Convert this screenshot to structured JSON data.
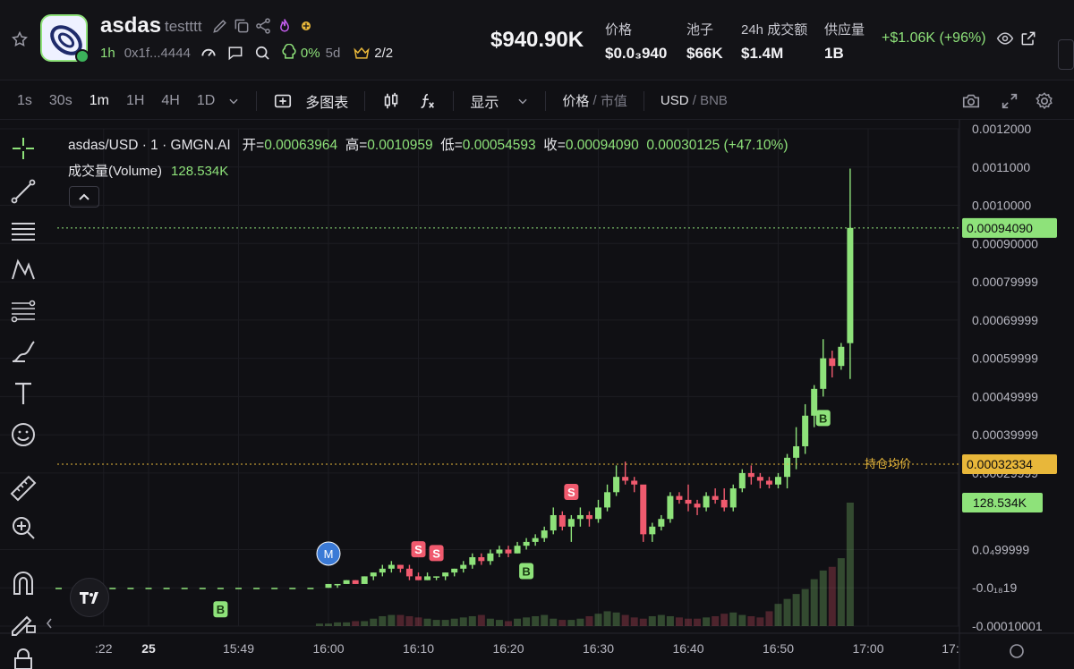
{
  "header": {
    "token_name": "asdas",
    "token_sub": "testttt",
    "age": "1h",
    "address": "0x1f...4444",
    "holder_pct": "0%",
    "holder_period": "5d",
    "crown": "2/2",
    "market_cap": "$940.90K",
    "stats": [
      {
        "label": "价格",
        "value": "$0.0₃940"
      },
      {
        "label": "池子",
        "value": "$66K"
      },
      {
        "label": "24h 成交额",
        "value": "$1.4M"
      },
      {
        "label": "供应量",
        "value": "1B"
      }
    ],
    "change": "+$1.06K (+96%)"
  },
  "toolbar": {
    "timeframes": [
      "1s",
      "30s",
      "1m",
      "1H",
      "4H",
      "1D"
    ],
    "active_timeframe": "1m",
    "multi_chart": "多图表",
    "display": "显示",
    "price_label": "价格",
    "mcap_label": "市值",
    "usd_label": "USD",
    "bnb_label": "BNB"
  },
  "legend": {
    "symbol": "asdas/USD · 1 · GMGN.AI",
    "open_label": "开=",
    "open": "0.00063964",
    "high_label": "高=",
    "high": "0.0010959",
    "low_label": "低=",
    "low": "0.00054593",
    "close_label": "收=",
    "close": "0.00094090",
    "change": "0.00030125 (+47.10%)",
    "volume_label": "成交量(Volume)",
    "volume": "128.534K"
  },
  "colors": {
    "up": "#8ee27a",
    "down": "#f05a6e",
    "bg": "#101014",
    "avg": "#e8b73a",
    "marker_m": "#3b7ad6"
  },
  "chart_data": {
    "type": "candlestick",
    "ylim": [
      -0.0001,
      0.0012
    ],
    "y_ticks": [
      {
        "v": 0.0012,
        "label": "0.0012000"
      },
      {
        "v": 0.0011,
        "label": "0.0011000"
      },
      {
        "v": 0.001,
        "label": "0.0010000"
      },
      {
        "v": 0.0009,
        "label": "0.00090000"
      },
      {
        "v": 0.0008,
        "label": "0.00079999"
      },
      {
        "v": 0.0007,
        "label": "0.00069999"
      },
      {
        "v": 0.0006,
        "label": "0.00059999"
      },
      {
        "v": 0.0005,
        "label": "0.00049999"
      },
      {
        "v": 0.0004,
        "label": "0.00039999"
      },
      {
        "v": 0.0003,
        "label": "0.00029999"
      },
      {
        "v": 0.0001,
        "label": "0.0₄99999"
      },
      {
        "v": 0.0,
        "label": "-0.0₁₈19"
      },
      {
        "v": -0.0001,
        "label": "-0.00010001"
      }
    ],
    "x_ticks": [
      ":22",
      "25",
      "15:49",
      "16:00",
      "16:10",
      "16:20",
      "16:30",
      "16:40",
      "16:50",
      "17:00",
      "17:"
    ],
    "x_tick_idx": [
      -25,
      -20,
      -10,
      0,
      10,
      20,
      30,
      40,
      50,
      60,
      70
    ],
    "current_price": {
      "value": 0.0009409,
      "label": "0.00094090"
    },
    "avg_cost": {
      "value": 0.00032334,
      "label": "0.00032334",
      "text": "持仓均价"
    },
    "volume_badge": "128.534K",
    "candles": [
      {
        "t": -30,
        "o": 0.0,
        "h": 0.0,
        "l": 0.0,
        "c": 0.0
      },
      {
        "t": -28,
        "o": 0.0,
        "h": 0.0,
        "l": 0.0,
        "c": 0.0
      },
      {
        "t": -26,
        "o": 0.0,
        "h": 0.0,
        "l": 0.0,
        "c": 0.0
      },
      {
        "t": -24,
        "o": 0.0,
        "h": 0.0,
        "l": 0.0,
        "c": 0.0
      },
      {
        "t": -22,
        "o": 0.0,
        "h": 0.0,
        "l": 0.0,
        "c": 0.0
      },
      {
        "t": -20,
        "o": 0.0,
        "h": 0.0,
        "l": 0.0,
        "c": 0.0
      },
      {
        "t": -18,
        "o": 0.0,
        "h": 0.0,
        "l": 0.0,
        "c": 0.0
      },
      {
        "t": -16,
        "o": 0.0,
        "h": 0.0,
        "l": 0.0,
        "c": 0.0
      },
      {
        "t": -14,
        "o": 0.0,
        "h": 0.0,
        "l": 0.0,
        "c": 0.0
      },
      {
        "t": -12,
        "o": 0.0,
        "h": 0.0,
        "l": 0.0,
        "c": 0.0
      },
      {
        "t": -10,
        "o": 0.0,
        "h": 0.0,
        "l": 0.0,
        "c": 0.0
      },
      {
        "t": -8,
        "o": 0.0,
        "h": 0.0,
        "l": 0.0,
        "c": 0.0
      },
      {
        "t": -6,
        "o": 0.0,
        "h": 0.0,
        "l": 0.0,
        "c": 0.0
      },
      {
        "t": -4,
        "o": 0.0,
        "h": 0.0,
        "l": 0.0,
        "c": 0.0
      },
      {
        "t": -2,
        "o": 0.0,
        "h": 0.0,
        "l": 0.0,
        "c": 0.0
      },
      {
        "t": 0,
        "o": 0.0,
        "h": 1e-05,
        "l": 0.0,
        "c": 1e-05
      },
      {
        "t": 1,
        "o": 1e-05,
        "h": 1e-05,
        "l": 0.0,
        "c": 1e-05
      },
      {
        "t": 2,
        "o": 1e-05,
        "h": 2e-05,
        "l": 1e-05,
        "c": 2e-05
      },
      {
        "t": 3,
        "o": 2e-05,
        "h": 2e-05,
        "l": 1e-05,
        "c": 1e-05
      },
      {
        "t": 4,
        "o": 1e-05,
        "h": 3e-05,
        "l": 1e-05,
        "c": 3e-05
      },
      {
        "t": 5,
        "o": 3e-05,
        "h": 4e-05,
        "l": 2e-05,
        "c": 4e-05
      },
      {
        "t": 6,
        "o": 4e-05,
        "h": 6e-05,
        "l": 3e-05,
        "c": 5e-05
      },
      {
        "t": 7,
        "o": 5e-05,
        "h": 7e-05,
        "l": 4e-05,
        "c": 6e-05
      },
      {
        "t": 8,
        "o": 6e-05,
        "h": 6e-05,
        "l": 4e-05,
        "c": 5e-05
      },
      {
        "t": 9,
        "o": 5e-05,
        "h": 6e-05,
        "l": 2e-05,
        "c": 3e-05
      },
      {
        "t": 10,
        "o": 3e-05,
        "h": 4e-05,
        "l": 2e-05,
        "c": 2e-05
      },
      {
        "t": 11,
        "o": 2e-05,
        "h": 4e-05,
        "l": 2e-05,
        "c": 3e-05
      },
      {
        "t": 12,
        "o": 3e-05,
        "h": 3e-05,
        "l": 2e-05,
        "c": 3e-05
      },
      {
        "t": 13,
        "o": 3e-05,
        "h": 4e-05,
        "l": 2e-05,
        "c": 4e-05
      },
      {
        "t": 14,
        "o": 4e-05,
        "h": 5e-05,
        "l": 3e-05,
        "c": 5e-05
      },
      {
        "t": 15,
        "o": 5e-05,
        "h": 7e-05,
        "l": 4e-05,
        "c": 6e-05
      },
      {
        "t": 16,
        "o": 6e-05,
        "h": 9e-05,
        "l": 5e-05,
        "c": 8e-05
      },
      {
        "t": 17,
        "o": 8e-05,
        "h": 9e-05,
        "l": 6e-05,
        "c": 7e-05
      },
      {
        "t": 18,
        "o": 7e-05,
        "h": 0.0001,
        "l": 6e-05,
        "c": 9e-05
      },
      {
        "t": 19,
        "o": 9e-05,
        "h": 0.00011,
        "l": 8e-05,
        "c": 0.0001
      },
      {
        "t": 20,
        "o": 0.0001,
        "h": 0.00011,
        "l": 8e-05,
        "c": 9e-05
      },
      {
        "t": 21,
        "o": 9e-05,
        "h": 0.00012,
        "l": 9e-05,
        "c": 0.00011
      },
      {
        "t": 22,
        "o": 0.00011,
        "h": 0.00013,
        "l": 0.0001,
        "c": 0.00012
      },
      {
        "t": 23,
        "o": 0.00012,
        "h": 0.00014,
        "l": 0.00011,
        "c": 0.00013
      },
      {
        "t": 24,
        "o": 0.00013,
        "h": 0.00016,
        "l": 0.00012,
        "c": 0.00015
      },
      {
        "t": 25,
        "o": 0.00015,
        "h": 0.00021,
        "l": 0.00014,
        "c": 0.00019
      },
      {
        "t": 26,
        "o": 0.00019,
        "h": 0.0002,
        "l": 0.00015,
        "c": 0.00016
      },
      {
        "t": 27,
        "o": 0.00016,
        "h": 0.00019,
        "l": 0.00012,
        "c": 0.00018
      },
      {
        "t": 28,
        "o": 0.00018,
        "h": 0.00021,
        "l": 0.00016,
        "c": 0.00019
      },
      {
        "t": 29,
        "o": 0.00019,
        "h": 0.0002,
        "l": 0.00016,
        "c": 0.00018
      },
      {
        "t": 30,
        "o": 0.00018,
        "h": 0.00023,
        "l": 0.00017,
        "c": 0.00021
      },
      {
        "t": 31,
        "o": 0.00021,
        "h": 0.00027,
        "l": 0.0002,
        "c": 0.00025
      },
      {
        "t": 32,
        "o": 0.00025,
        "h": 0.00032,
        "l": 0.00024,
        "c": 0.00029
      },
      {
        "t": 33,
        "o": 0.00029,
        "h": 0.00033,
        "l": 0.00027,
        "c": 0.00028
      },
      {
        "t": 34,
        "o": 0.00028,
        "h": 0.00029,
        "l": 0.00025,
        "c": 0.00027
      },
      {
        "t": 35,
        "o": 0.00027,
        "h": 0.00026,
        "l": 0.00012,
        "c": 0.00014
      },
      {
        "t": 36,
        "o": 0.00014,
        "h": 0.00017,
        "l": 0.00012,
        "c": 0.00016
      },
      {
        "t": 37,
        "o": 0.00016,
        "h": 0.00019,
        "l": 0.00015,
        "c": 0.00018
      },
      {
        "t": 38,
        "o": 0.00018,
        "h": 0.00025,
        "l": 0.00017,
        "c": 0.00024
      },
      {
        "t": 39,
        "o": 0.00024,
        "h": 0.00025,
        "l": 0.00022,
        "c": 0.00023
      },
      {
        "t": 40,
        "o": 0.00023,
        "h": 0.00027,
        "l": 0.0002,
        "c": 0.00022
      },
      {
        "t": 41,
        "o": 0.00022,
        "h": 0.00023,
        "l": 0.00019,
        "c": 0.00021
      },
      {
        "t": 42,
        "o": 0.00021,
        "h": 0.00025,
        "l": 0.0002,
        "c": 0.00024
      },
      {
        "t": 43,
        "o": 0.00024,
        "h": 0.00026,
        "l": 0.00022,
        "c": 0.00023
      },
      {
        "t": 44,
        "o": 0.00023,
        "h": 0.00026,
        "l": 0.0002,
        "c": 0.00021
      },
      {
        "t": 45,
        "o": 0.00021,
        "h": 0.00027,
        "l": 0.0002,
        "c": 0.00026
      },
      {
        "t": 46,
        "o": 0.00026,
        "h": 0.00031,
        "l": 0.00025,
        "c": 0.0003
      },
      {
        "t": 47,
        "o": 0.0003,
        "h": 0.00032,
        "l": 0.00027,
        "c": 0.00029
      },
      {
        "t": 48,
        "o": 0.00029,
        "h": 0.0003,
        "l": 0.00026,
        "c": 0.00028
      },
      {
        "t": 49,
        "o": 0.00028,
        "h": 0.00029,
        "l": 0.00026,
        "c": 0.00027
      },
      {
        "t": 50,
        "o": 0.00027,
        "h": 0.0003,
        "l": 0.00026,
        "c": 0.00029
      },
      {
        "t": 51,
        "o": 0.00029,
        "h": 0.00035,
        "l": 0.00026,
        "c": 0.00034
      },
      {
        "t": 52,
        "o": 0.00034,
        "h": 0.00042,
        "l": 0.00031,
        "c": 0.00037
      },
      {
        "t": 53,
        "o": 0.00037,
        "h": 0.00048,
        "l": 0.00035,
        "c": 0.00045
      },
      {
        "t": 54,
        "o": 0.00045,
        "h": 0.00053,
        "l": 0.00042,
        "c": 0.00052
      },
      {
        "t": 55,
        "o": 0.00052,
        "h": 0.00065,
        "l": 0.0005,
        "c": 0.0006
      },
      {
        "t": 56,
        "o": 0.0006,
        "h": 0.00062,
        "l": 0.00055,
        "c": 0.00058
      },
      {
        "t": 57,
        "o": 0.00058,
        "h": 0.00064,
        "l": 0.00057,
        "c": 0.00063
      },
      {
        "t": 58,
        "o": 0.00063964,
        "h": 0.0010959,
        "l": 0.00054593,
        "c": 0.0009409
      }
    ],
    "volumes": [
      2,
      2,
      3,
      3,
      4,
      4,
      6,
      8,
      9,
      9,
      8,
      7,
      6,
      5,
      5,
      6,
      7,
      8,
      9,
      6,
      5,
      4,
      6,
      7,
      8,
      9,
      6,
      5,
      5,
      6,
      8,
      10,
      12,
      11,
      9,
      7,
      6,
      8,
      9,
      8,
      7,
      6,
      6,
      7,
      8,
      10,
      11,
      9,
      8,
      7,
      12,
      18,
      22,
      26,
      30,
      38,
      45,
      48,
      55,
      100
    ],
    "markers": [
      {
        "t": -12,
        "type": "B",
        "pos": "below"
      },
      {
        "t": 0,
        "type": "M",
        "pos": "above"
      },
      {
        "t": 10,
        "type": "S",
        "pos": "above"
      },
      {
        "t": 12,
        "type": "S",
        "pos": "above"
      },
      {
        "t": 22,
        "type": "B",
        "pos": "below"
      },
      {
        "t": 27,
        "type": "S",
        "pos": "above"
      },
      {
        "t": 55,
        "type": "B",
        "pos": "below"
      }
    ]
  }
}
